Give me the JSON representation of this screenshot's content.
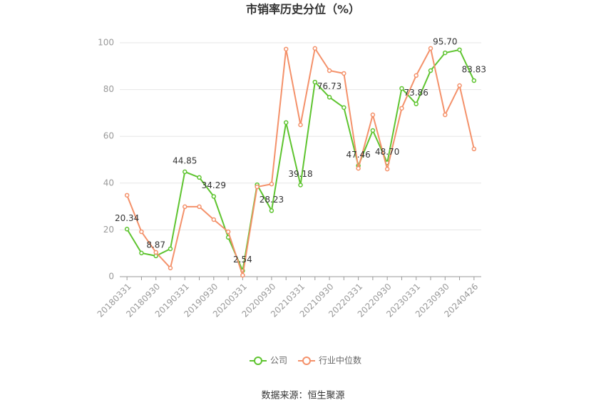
{
  "chart_data": {
    "type": "line",
    "title": "市销率历史分位（%）",
    "categories": [
      "20180331",
      null,
      "20180930",
      null,
      "20190331",
      null,
      "20190930",
      null,
      "20200331",
      null,
      "20200930",
      null,
      "20210331",
      null,
      "20210930",
      null,
      "20220331",
      null,
      "20220930",
      null,
      "20230331",
      null,
      "20230930",
      null,
      "20240426"
    ],
    "series": [
      {
        "name": "公司",
        "color": "#5ec42f",
        "values": [
          20.34,
          10.1,
          8.87,
          11.9,
          44.85,
          42.4,
          34.29,
          16.8,
          2.54,
          39.3,
          28.23,
          65.9,
          39.18,
          83.2,
          76.73,
          72.3,
          47.46,
          62.5,
          48.7,
          80.5,
          73.86,
          88.1,
          95.7,
          97.0,
          83.83
        ],
        "value_labels": [
          "20.34",
          null,
          "8.87",
          null,
          "44.85",
          null,
          "34.29",
          null,
          "2.54",
          null,
          "28.23",
          null,
          "39.18",
          null,
          "76.73",
          null,
          "47.46",
          null,
          "48.70",
          null,
          "73.86",
          null,
          "95.70",
          null,
          "83.83"
        ]
      },
      {
        "name": "行业中位数",
        "color": "#f4916a",
        "values": [
          34.8,
          19.2,
          10.4,
          3.7,
          29.9,
          29.9,
          24.4,
          19.2,
          0.6,
          38.4,
          39.6,
          97.3,
          64.9,
          97.6,
          88.1,
          86.9,
          46.3,
          69.2,
          46.0,
          72.0,
          86.0,
          97.6,
          69.2,
          81.7,
          54.6
        ]
      }
    ],
    "ylim": [
      0,
      100
    ],
    "yticks": [
      0,
      20,
      40,
      60,
      80,
      100
    ],
    "grid": true,
    "legend": "bottom",
    "source": "数据来源：恒生聚源"
  }
}
